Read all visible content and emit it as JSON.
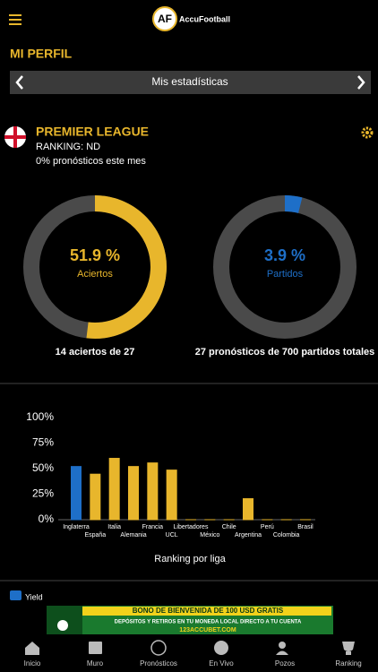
{
  "header": {
    "logo_mark": "AF",
    "logo_text": "AccuFootball"
  },
  "page_title": "MI PERFIL",
  "selector": {
    "label": "Mis estadísticas"
  },
  "league": {
    "name": "PREMIER LEAGUE",
    "ranking": "RANKING: ND",
    "monthly": "0% pronósticos este mes"
  },
  "chart_data": [
    {
      "type": "donut",
      "values": [
        51.9
      ],
      "value_labels": [
        "51.9 %"
      ],
      "label": "Aciertos",
      "color": "#e8b62c",
      "caption": "14 aciertos de 27"
    },
    {
      "type": "donut",
      "values": [
        3.9
      ],
      "value_labels": [
        "3.9 %"
      ],
      "label": "Partidos",
      "color": "#1e6fc8",
      "caption": "27 pronósticos de 700 partidos totales"
    },
    {
      "type": "bar",
      "x_label": "Ranking por liga",
      "categories": [
        "Inglaterra",
        "España",
        "Italia",
        "Alemania",
        "Francia",
        "UCL",
        "Libertadores",
        "México",
        "Chile",
        "Argentina",
        "Perú",
        "Colombia",
        "Brasil"
      ],
      "values": [
        52.5,
        45,
        60.5,
        52.5,
        56,
        49,
        0,
        0,
        0,
        21,
        0,
        0,
        0
      ],
      "colors": [
        "#1e6fc8",
        "#e8b62c",
        "#e8b62c",
        "#e8b62c",
        "#e8b62c",
        "#e8b62c",
        "#e8b62c",
        "#e8b62c",
        "#e8b62c",
        "#e8b62c",
        "#e8b62c",
        "#e8b62c",
        "#e8b62c"
      ],
      "ylim": [
        0,
        100
      ],
      "yticks": [
        {
          "value": 0,
          "label": "0%"
        },
        {
          "value": 25,
          "label": "25%"
        },
        {
          "value": 50,
          "label": "50%"
        },
        {
          "value": 75,
          "label": "75%"
        },
        {
          "value": 100,
          "label": "100%"
        }
      ],
      "legend": {
        "label": "Yield",
        "color": "#1e6fc8"
      }
    }
  ],
  "banner": {
    "headline": "BONO DE BIENVENIDA DE 100 USD GRATIS",
    "subline": "DEPÓSITOS Y RETIROS EN TU MONEDA LOCAL DIRECTO A TU CUENTA",
    "site": "123ACCUBET.COM"
  },
  "nav": [
    "Inicio",
    "Muro",
    "Pronósticos",
    "En Vivo",
    "Pozos",
    "Ranking"
  ]
}
